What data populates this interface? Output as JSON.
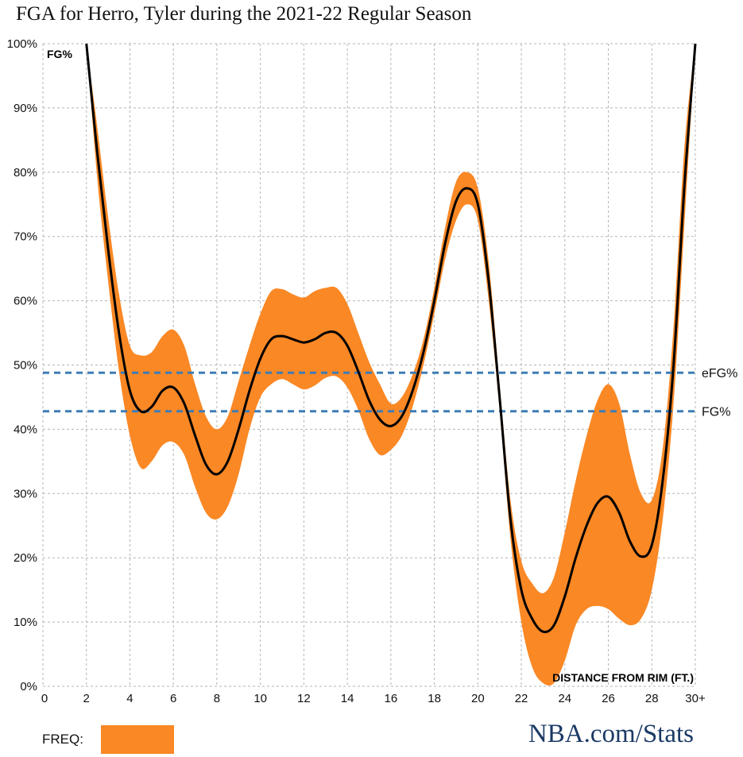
{
  "title": "FGA for Herro, Tyler during the 2021-22 Regular Season",
  "brand": "NBA.com/Stats",
  "legend": {
    "label": "FREQ:"
  },
  "colors": {
    "band": "#fa8825",
    "line": "#000000",
    "reference": "#3e7cb6",
    "grid": "#b5b5b5"
  },
  "chart_data": {
    "type": "line",
    "ylabel": "FG%",
    "xlabel": "DISTANCE FROM RIM (FT.)",
    "xlim": [
      0,
      30
    ],
    "ylim": [
      0,
      100
    ],
    "x_ticks": [
      "0",
      "2",
      "4",
      "6",
      "8",
      "10",
      "12",
      "14",
      "16",
      "18",
      "20",
      "22",
      "24",
      "26",
      "28",
      "30+"
    ],
    "y_ticks": [
      "0%",
      "10%",
      "20%",
      "30%",
      "40%",
      "50%",
      "60%",
      "70%",
      "80%",
      "90%",
      "100%"
    ],
    "grid": true,
    "series": [
      {
        "x": [
          2,
          2.5,
          3,
          3.5,
          4,
          4.5,
          5,
          5.5,
          6,
          6.5,
          7,
          7.5,
          8,
          8.5,
          9,
          9.5,
          10,
          10.5,
          11,
          11.5,
          12,
          12.5,
          13,
          13.5,
          14,
          14.5,
          15,
          15.5,
          16,
          16.5,
          17,
          17.5,
          18,
          18.5,
          19,
          19.5,
          20,
          20.5,
          21,
          21.5,
          22,
          22.5,
          23,
          23.5,
          24,
          24.5,
          25,
          25.5,
          26,
          26.5,
          27,
          27.5,
          28,
          28.5,
          29,
          29.5,
          30
        ],
        "y": [
          100,
          83,
          68,
          55,
          46,
          42.8,
          43.5,
          46,
          46.5,
          44,
          39,
          34.5,
          33,
          35,
          40,
          46,
          51,
          54,
          54.5,
          54,
          53.5,
          54,
          55,
          55,
          53,
          49,
          44.5,
          41.5,
          40.5,
          42,
          46,
          52,
          60,
          69,
          75.5,
          77.5,
          75,
          63,
          45,
          26,
          15,
          10.5,
          8.5,
          9.5,
          14,
          20,
          25,
          28.5,
          29.5,
          27,
          22.5,
          20.2,
          22,
          32,
          50,
          78,
          100
        ],
        "lower": [
          100,
          79,
          63,
          49,
          39,
          34,
          35,
          37.5,
          38,
          36,
          31,
          27,
          26,
          28,
          33,
          40,
          45,
          47,
          47.8,
          47,
          46.2,
          46.8,
          48,
          48.2,
          46.5,
          43,
          38.5,
          36,
          36.8,
          39,
          43.5,
          50,
          58,
          66.5,
          72.5,
          75,
          72.5,
          60,
          43,
          23,
          10,
          3,
          0.5,
          0.5,
          4,
          9.5,
          12,
          12.5,
          12,
          10.5,
          9.5,
          10.5,
          15,
          26,
          44,
          72,
          100
        ],
        "upper": [
          100,
          87,
          73,
          61,
          53,
          51.5,
          52,
          54.5,
          55.5,
          53,
          47,
          42,
          40,
          42,
          47.5,
          53,
          58,
          61.5,
          61.8,
          61,
          60.5,
          61.5,
          62,
          62,
          59.5,
          55,
          50.5,
          47,
          44,
          45,
          48.5,
          54,
          62,
          71.5,
          78.5,
          80,
          77.5,
          66,
          47,
          29,
          19.5,
          16,
          14.5,
          17,
          24,
          32,
          39,
          44.5,
          47,
          44,
          36,
          30,
          29,
          37,
          56,
          84,
          100
        ]
      }
    ],
    "reference_lines": [
      {
        "name": "eFG%",
        "value": 48.8
      },
      {
        "name": "FG%",
        "value": 42.8
      }
    ]
  }
}
